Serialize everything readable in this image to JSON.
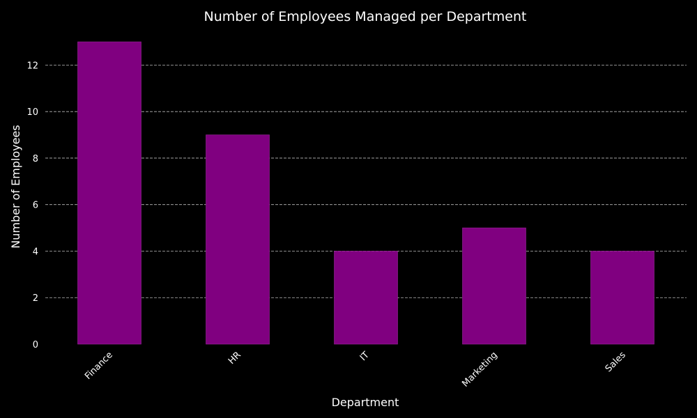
{
  "chart_data": {
    "type": "bar",
    "title": "Number of Employees Managed per Department",
    "xlabel": "Department",
    "ylabel": "Number of Employees",
    "categories": [
      "Finance",
      "HR",
      "IT",
      "Marketing",
      "Sales"
    ],
    "values": [
      13,
      9,
      4,
      5,
      4
    ],
    "ylim": [
      0,
      13.6
    ],
    "yticks": [
      0,
      2,
      4,
      6,
      8,
      10,
      12
    ],
    "grid": "y-dashed",
    "legend": "none",
    "colors": {
      "background": "#000000",
      "bar": "#800080",
      "bar_edge": "#9a2a9a",
      "grid": "#bbbbbb",
      "text": "#ffffff"
    }
  }
}
